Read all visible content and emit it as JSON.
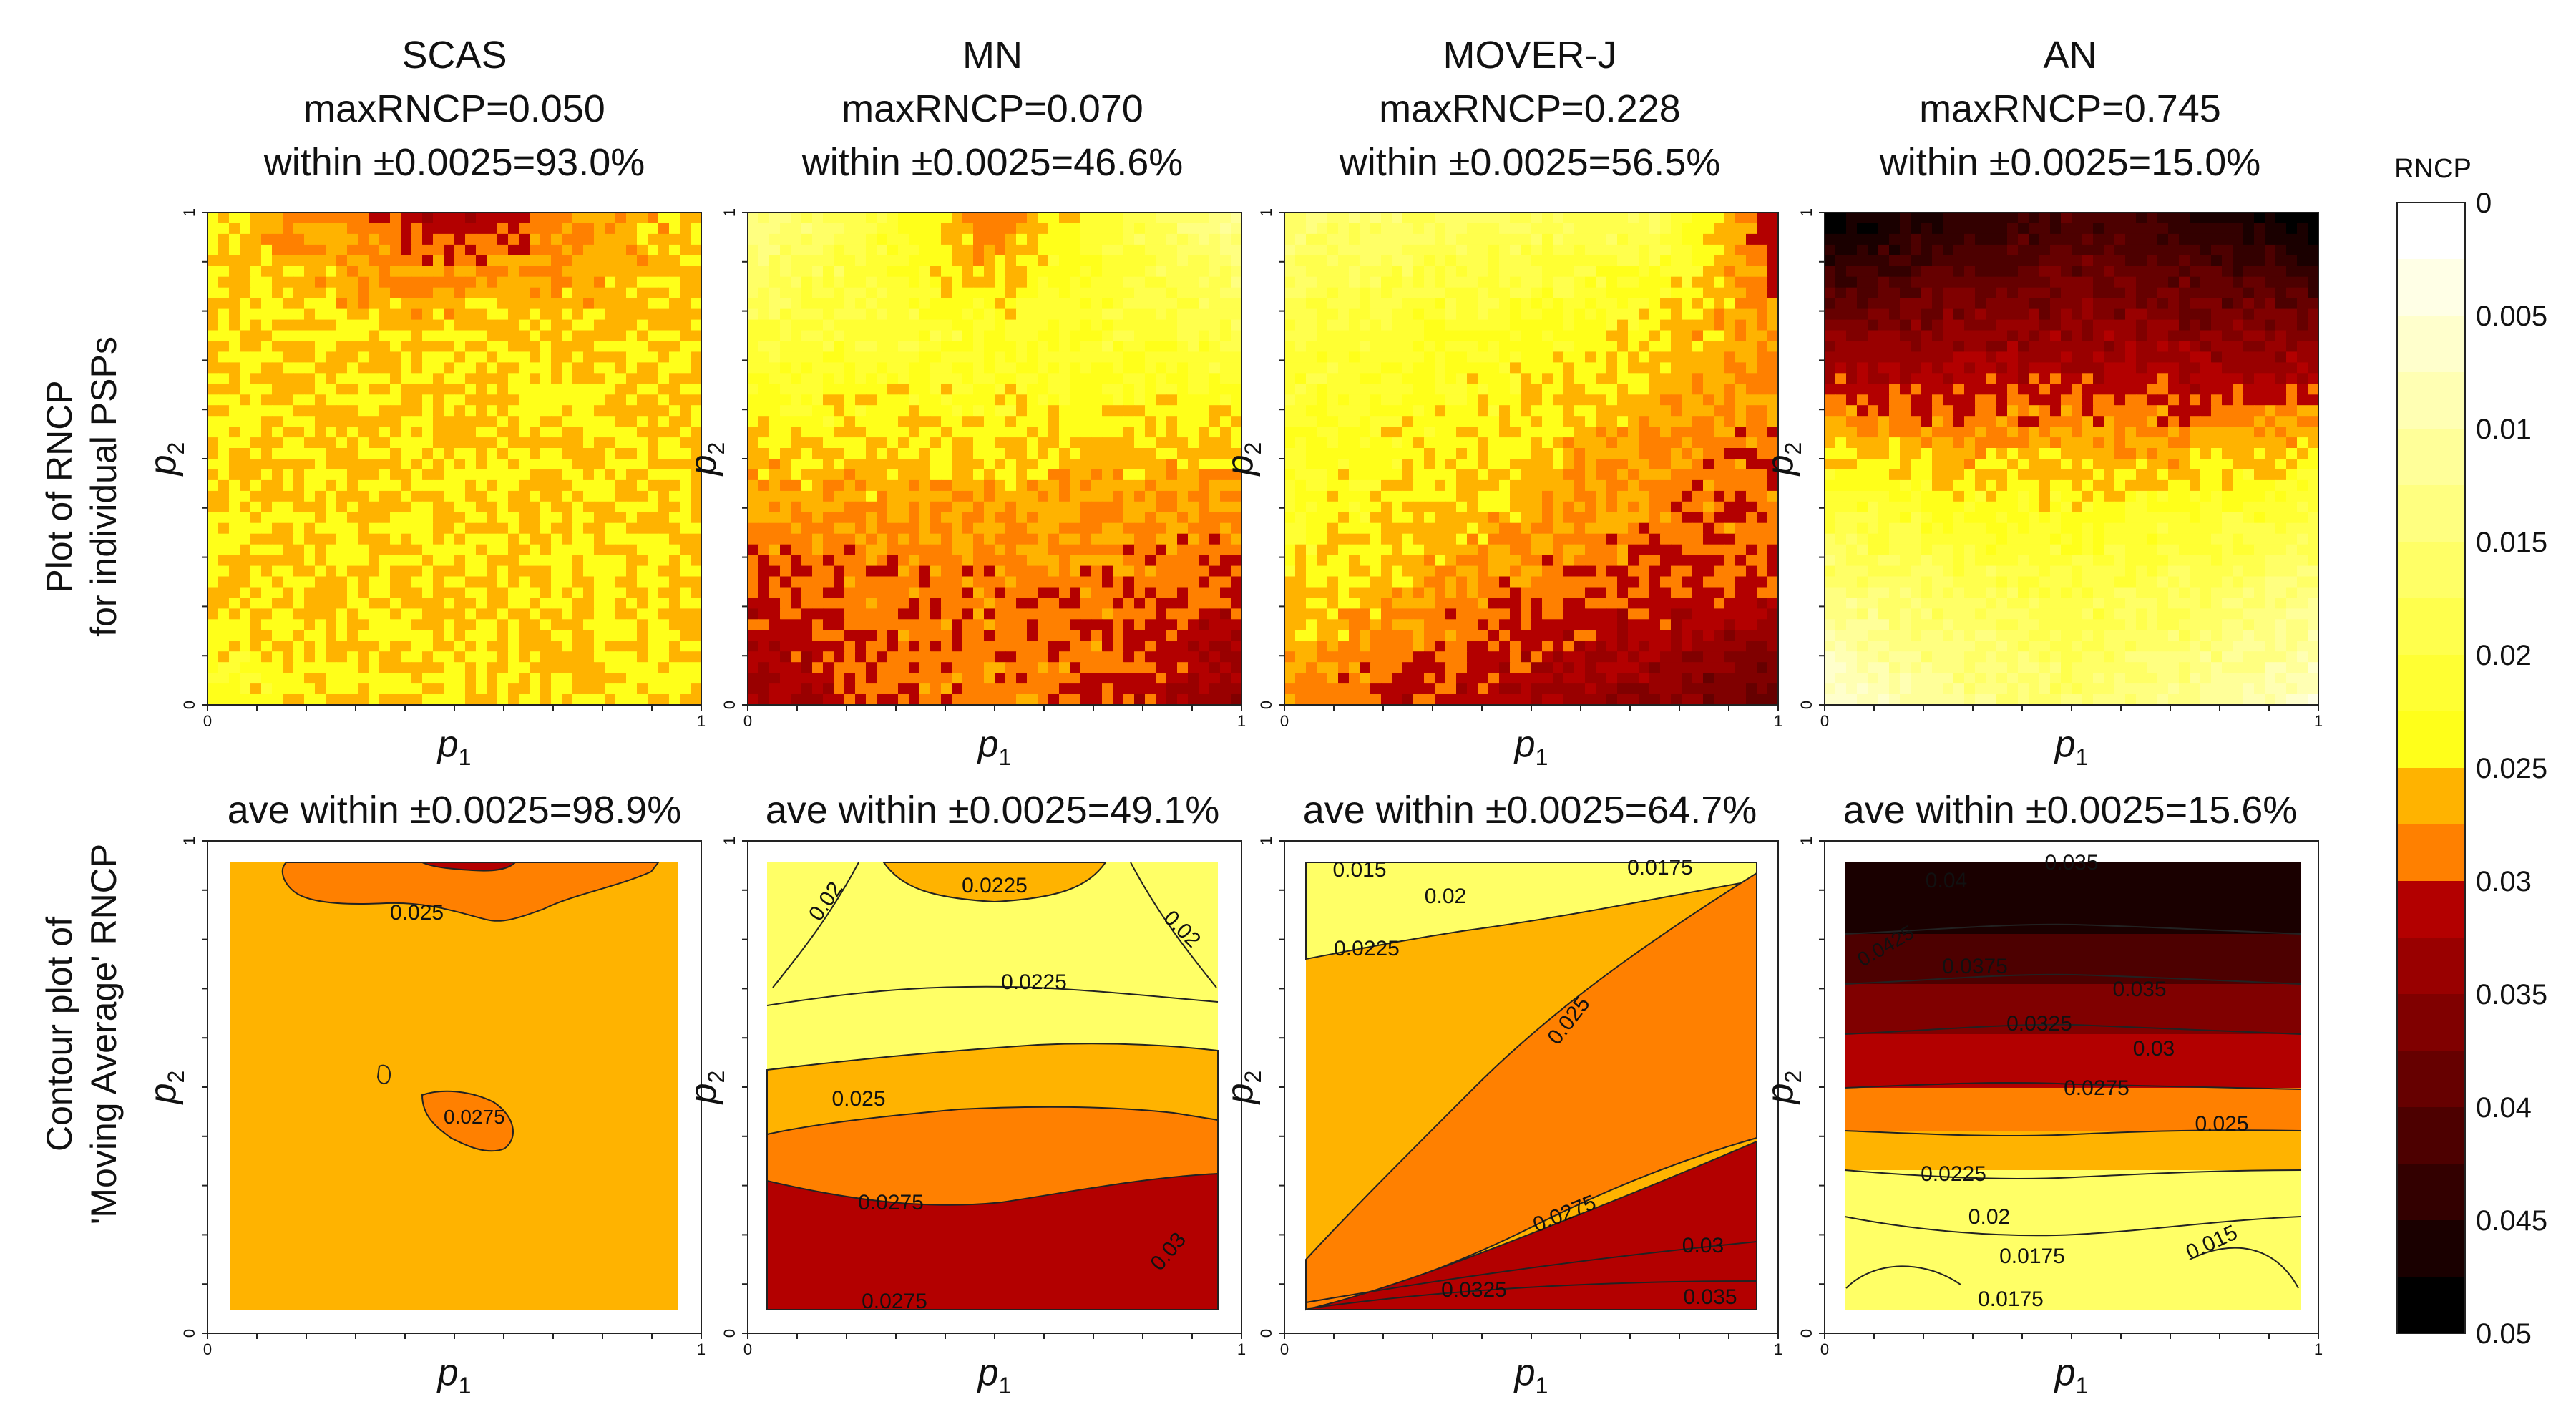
{
  "figure": {
    "row_labels": [
      [
        "Plot of RNCP",
        "for individual PSPs"
      ],
      [
        "Contour plot of",
        "'Moving Average' RNCP"
      ]
    ],
    "axis": {
      "x_label_sym": "p",
      "x_label_sub": "1",
      "y_label_sym": "p",
      "y_label_sub": "2",
      "tick_min": "0",
      "tick_max": "1"
    },
    "methods": [
      {
        "name": "SCAS",
        "max_line": "maxRNCP=0.050",
        "within_line": "within ±0.0025=93.0%",
        "ave_line": "ave within ±0.0025=98.9%"
      },
      {
        "name": "MN",
        "max_line": "maxRNCP=0.070",
        "within_line": "within ±0.0025=46.6%",
        "ave_line": "ave within ±0.0025=49.1%"
      },
      {
        "name": "MOVER-J",
        "max_line": "maxRNCP=0.228",
        "within_line": "within ±0.0025=56.5%",
        "ave_line": "ave within ±0.0025=64.7%"
      },
      {
        "name": "AN",
        "max_line": "maxRNCP=0.745",
        "within_line": "within ±0.0025=15.0%",
        "ave_line": "ave within ±0.0025=15.6%"
      }
    ],
    "colorbar": {
      "title": "RNCP",
      "tick_labels": [
        "0",
        "0.005",
        "0.01",
        "0.015",
        "0.02",
        "0.025",
        "0.03",
        "0.035",
        "0.04",
        "0.045",
        "0.05"
      ],
      "colors": [
        "#ffffff",
        "#ffffe6",
        "#ffffcc",
        "#ffffb3",
        "#ffff99",
        "#ffff80",
        "#ffff66",
        "#ffff4d",
        "#ffff33",
        "#ffff1a",
        "#ffb300",
        "#ff8000",
        "#b30000",
        "#990000",
        "#800000",
        "#660000",
        "#4d0000",
        "#330000",
        "#1a0000",
        "#000000"
      ]
    }
  },
  "chart_data": [
    {
      "type": "heatmap",
      "title": "SCAS",
      "subtitle": [
        "maxRNCP=0.050",
        "within ±0.0025=93.0%"
      ],
      "xlabel": "p1",
      "ylabel": "p2",
      "xlim": [
        0,
        1
      ],
      "ylim": [
        0,
        1
      ],
      "scale": [
        0,
        0.05
      ],
      "grid_y": [
        0.0,
        0.25,
        0.5,
        0.75,
        1.0
      ],
      "grid_x": [
        0.0,
        0.25,
        0.5,
        0.75,
        1.0
      ],
      "values": [
        [
          0.022,
          0.025,
          0.025,
          0.025,
          0.024
        ],
        [
          0.025,
          0.025,
          0.025,
          0.025,
          0.025
        ],
        [
          0.025,
          0.025,
          0.025,
          0.025,
          0.025
        ],
        [
          0.025,
          0.025,
          0.025,
          0.025,
          0.025
        ],
        [
          0.025,
          0.028,
          0.032,
          0.028,
          0.025
        ]
      ]
    },
    {
      "type": "heatmap",
      "title": "MN",
      "subtitle": [
        "maxRNCP=0.070",
        "within ±0.0025=46.6%"
      ],
      "xlabel": "p1",
      "ylabel": "p2",
      "xlim": [
        0,
        1
      ],
      "ylim": [
        0,
        1
      ],
      "scale": [
        0,
        0.05
      ],
      "grid_y": [
        0.0,
        0.25,
        0.5,
        0.75,
        1.0
      ],
      "grid_x": [
        0.0,
        0.25,
        0.5,
        0.75,
        1.0
      ],
      "values": [
        [
          0.034,
          0.03,
          0.028,
          0.03,
          0.035
        ],
        [
          0.03,
          0.029,
          0.029,
          0.029,
          0.03
        ],
        [
          0.026,
          0.026,
          0.025,
          0.026,
          0.026
        ],
        [
          0.02,
          0.021,
          0.022,
          0.021,
          0.02
        ],
        [
          0.012,
          0.02,
          0.03,
          0.02,
          0.012
        ]
      ]
    },
    {
      "type": "heatmap",
      "title": "MOVER-J",
      "subtitle": [
        "maxRNCP=0.228",
        "within ±0.0025=56.5%"
      ],
      "xlabel": "p1",
      "ylabel": "p2",
      "xlim": [
        0,
        1
      ],
      "ylim": [
        0,
        1
      ],
      "scale": [
        0,
        0.05
      ],
      "grid_y": [
        0.0,
        0.25,
        0.5,
        0.75,
        1.0
      ],
      "grid_x": [
        0.0,
        0.25,
        0.5,
        0.75,
        1.0
      ],
      "values": [
        [
          0.028,
          0.031,
          0.033,
          0.035,
          0.04
        ],
        [
          0.024,
          0.026,
          0.029,
          0.03,
          0.03
        ],
        [
          0.022,
          0.024,
          0.025,
          0.028,
          0.029
        ],
        [
          0.02,
          0.022,
          0.023,
          0.025,
          0.028
        ],
        [
          0.014,
          0.016,
          0.017,
          0.018,
          0.032
        ]
      ]
    },
    {
      "type": "heatmap",
      "title": "AN",
      "subtitle": [
        "maxRNCP=0.745",
        "within ±0.0025=15.0%"
      ],
      "xlabel": "p1",
      "ylabel": "p2",
      "xlim": [
        0,
        1
      ],
      "ylim": [
        0,
        1
      ],
      "scale": [
        0,
        0.05
      ],
      "grid_y": [
        0.0,
        0.25,
        0.5,
        0.75,
        1.0
      ],
      "grid_x": [
        0.0,
        0.25,
        0.5,
        0.75,
        1.0
      ],
      "values": [
        [
          0.005,
          0.012,
          0.016,
          0.012,
          0.006
        ],
        [
          0.015,
          0.018,
          0.02,
          0.018,
          0.015
        ],
        [
          0.024,
          0.026,
          0.026,
          0.026,
          0.024
        ],
        [
          0.036,
          0.035,
          0.034,
          0.035,
          0.036
        ],
        [
          0.05,
          0.045,
          0.042,
          0.045,
          0.05
        ]
      ]
    },
    {
      "type": "heatmap",
      "title": "ave within ±0.0025=98.9%",
      "xlabel": "p1",
      "ylabel": "p2",
      "xlim": [
        0,
        1
      ],
      "ylim": [
        0,
        1
      ],
      "contour_labels": [
        "0.025",
        "0.0275"
      ],
      "regions": [
        {
          "level": 0.025,
          "label": "0.025"
        },
        {
          "level": 0.0275,
          "label": "0.0275"
        }
      ]
    },
    {
      "type": "heatmap",
      "title": "ave within ±0.0025=49.1%",
      "xlabel": "p1",
      "ylabel": "p2",
      "xlim": [
        0,
        1
      ],
      "ylim": [
        0,
        1
      ],
      "contour_labels": [
        "0.02",
        "0.0225",
        "0.0225",
        "0.02",
        "0.025",
        "0.0275",
        "0.03",
        "0.0275"
      ]
    },
    {
      "type": "heatmap",
      "title": "ave within ±0.0025=64.7%",
      "xlabel": "p1",
      "ylabel": "p2",
      "xlim": [
        0,
        1
      ],
      "ylim": [
        0,
        1
      ],
      "contour_labels": [
        "0.015",
        "0.0175",
        "0.02",
        "0.0225",
        "0.025",
        "0.0275",
        "0.03",
        "0.0325",
        "0.035"
      ]
    },
    {
      "type": "heatmap",
      "title": "ave within ±0.0025=15.6%",
      "xlabel": "p1",
      "ylabel": "p2",
      "xlim": [
        0,
        1
      ],
      "ylim": [
        0,
        1
      ],
      "contour_labels": [
        "0.035",
        "0.04",
        "0.0425",
        "0.0375",
        "0.035",
        "0.0325",
        "0.03",
        "0.0275",
        "0.025",
        "0.0225",
        "0.02",
        "0.0175",
        "0.015",
        "0.0175"
      ]
    }
  ]
}
